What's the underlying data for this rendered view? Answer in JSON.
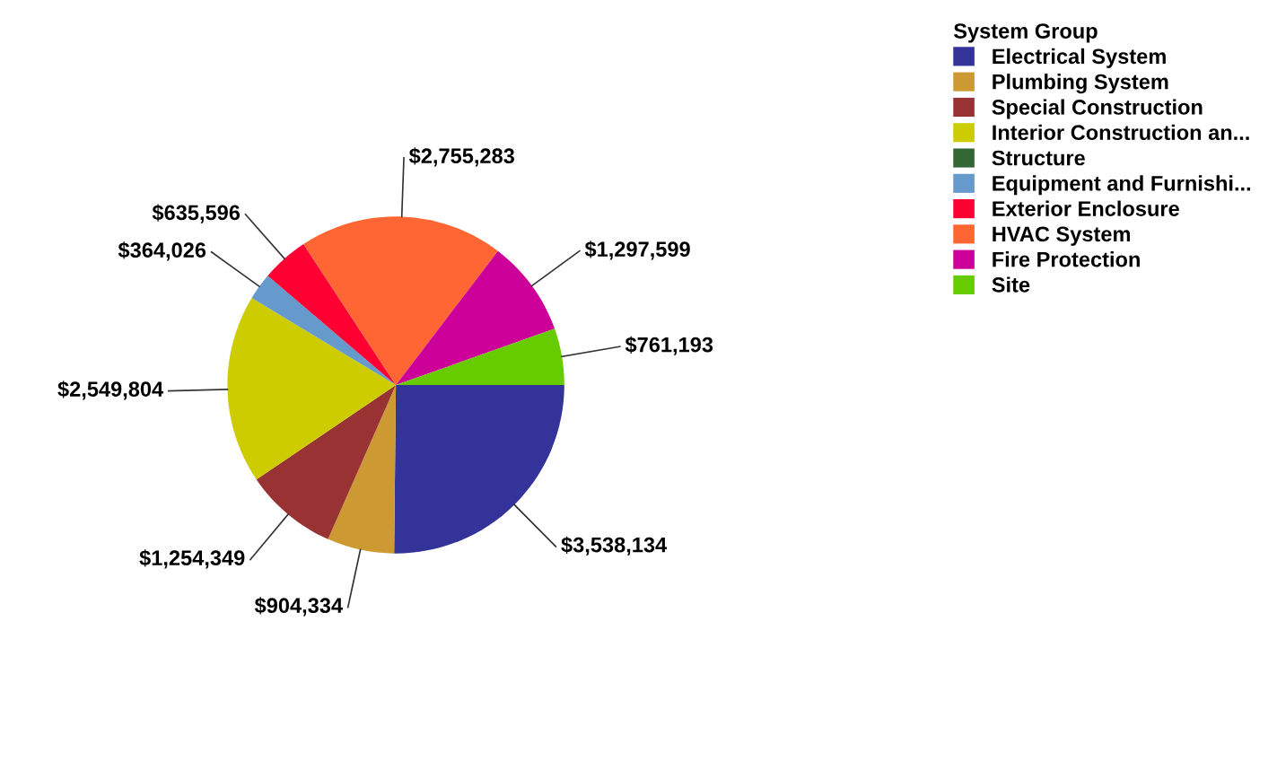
{
  "chart_data": {
    "type": "pie",
    "legend_title": "System Group",
    "legend": "top right",
    "data_labels": true,
    "categories": [
      "Electrical System",
      "Plumbing System",
      "Special Construction",
      "Interior Construction an...",
      "Structure",
      "Equipment and Furnishi...",
      "Exterior Enclosure",
      "HVAC System",
      "Fire Protection",
      "Site"
    ],
    "values": [
      3538134,
      904334,
      1254349,
      2549804,
      0,
      364026,
      635596,
      2755283,
      1297599,
      761193
    ],
    "value_labels": [
      "$3,538,134",
      "$904,334",
      "$1,254,349",
      "$2,549,804",
      null,
      "$364,026",
      "$635,596",
      "$2,755,283",
      "$1,297,599",
      "$761,193"
    ],
    "colors": [
      "#333399",
      "#cc9933",
      "#993333",
      "#cccc00",
      "#336633",
      "#6699cc",
      "#ff0033",
      "#ff6633",
      "#cc0099",
      "#66cc00"
    ]
  }
}
